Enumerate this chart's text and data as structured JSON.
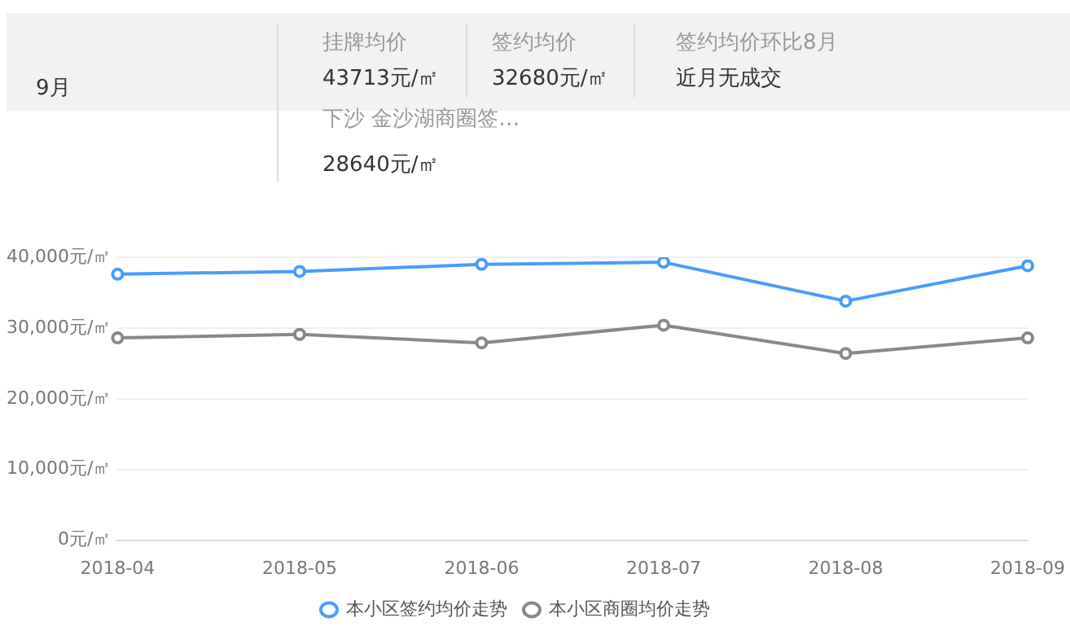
{
  "chart_data": {
    "type": "line",
    "annotations": [
      "9月",
      "挂牌均价",
      "43713元/㎡",
      "签约均价",
      "32680元/㎡",
      "签约均价环比8月",
      "近月无成交",
      "下沙 金沙湖商圈签…",
      "28640元/㎡"
    ],
    "categories": [
      "2018-04",
      "2018-05",
      "2018-06",
      "2018-07",
      "2018-08",
      "2018-09"
    ],
    "series": [
      {
        "name": "本小区签约均价走势",
        "color": "#4a9bff",
        "values": [
          37600,
          38000,
          39000,
          39300,
          33800,
          38800
        ]
      },
      {
        "name": "本小区商圈均价走势",
        "color": "#888888",
        "values": [
          28600,
          29100,
          27900,
          30400,
          26400,
          28600
        ]
      }
    ],
    "ylim": [
      0,
      40000
    ],
    "yticks": [
      {
        "value": 0,
        "label": "0元/㎡"
      },
      {
        "value": 10000,
        "label": "10,000元/㎡"
      },
      {
        "value": 20000,
        "label": "20,000元/㎡"
      },
      {
        "value": 30000,
        "label": "30,000元/㎡"
      },
      {
        "value": 40000,
        "label": "40,000元/㎡"
      }
    ],
    "grid": "y",
    "legend": "bottom",
    "marker": "circle",
    "line_style": "solid"
  }
}
